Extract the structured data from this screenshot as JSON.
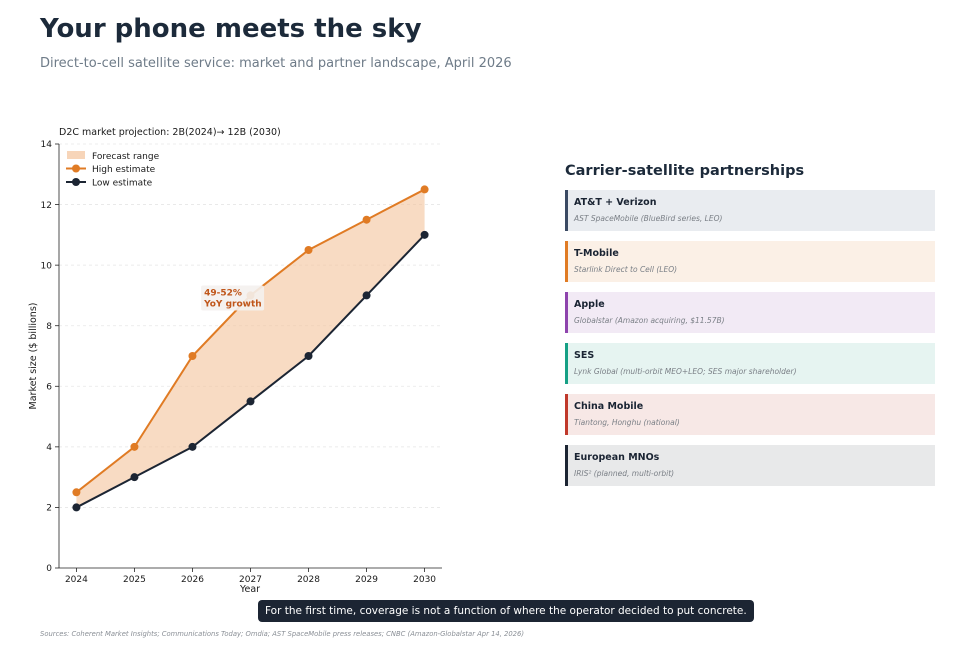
{
  "header": {
    "title": "Your phone meets the sky",
    "subtitle": "Direct-to-cell satellite service: market and partner landscape, April 2026"
  },
  "chart_data": {
    "type": "area",
    "title": "D2C market projection: 2B(2024)→ 12B (2030)",
    "xlabel": "Year",
    "ylabel": "Market size ($ billions)",
    "x": [
      2024,
      2025,
      2026,
      2027,
      2028,
      2029,
      2030
    ],
    "xlim": [
      2023.7,
      2030.3
    ],
    "ylim": [
      0,
      14
    ],
    "y_ticks": [
      0,
      2,
      4,
      6,
      8,
      10,
      12,
      14
    ],
    "grid": "horizontal, light",
    "legend_placement": "top-left",
    "legend": [
      "Forecast range",
      "High estimate",
      "Low estimate"
    ],
    "series": [
      {
        "name": "High estimate",
        "values": [
          2.5,
          4,
          7,
          9,
          10.5,
          11.5,
          12.5
        ],
        "color": "#e07b24"
      },
      {
        "name": "Low estimate",
        "values": [
          2,
          3,
          4,
          5.5,
          7,
          9,
          11
        ],
        "color": "#1c2533"
      }
    ],
    "band": {
      "name": "Forecast range",
      "color": "#f3c39b"
    },
    "annotation": {
      "line1": "49-52%",
      "line2": "YoY growth",
      "x": 2026.2,
      "y": 8.8,
      "color": "#c0561a"
    }
  },
  "partnerships": {
    "title": "Carrier-satellite partnerships",
    "items": [
      {
        "name": "AT&T + Verizon",
        "detail": "AST SpaceMobile (BlueBird series, LEO)",
        "accent": "#3b4a63",
        "bg": "#e9ecf0"
      },
      {
        "name": "T-Mobile",
        "detail": "Starlink Direct to Cell (LEO)",
        "accent": "#e07b24",
        "bg": "#fbf0e6"
      },
      {
        "name": "Apple",
        "detail": "Globalstar (Amazon acquiring, $11.57B)",
        "accent": "#8e44ad",
        "bg": "#f2eaf5"
      },
      {
        "name": "SES",
        "detail": "Lynk Global (multi-orbit MEO+LEO; SES major shareholder)",
        "accent": "#16a085",
        "bg": "#e6f4f1"
      },
      {
        "name": "China Mobile",
        "detail": "Tiantong, Honghu (national)",
        "accent": "#c0392b",
        "bg": "#f7e8e6"
      },
      {
        "name": "European MNOs",
        "detail": "IRIS² (planned, multi-orbit)",
        "accent": "#1c2533",
        "bg": "#e8e9ea"
      }
    ]
  },
  "callout": "For the first time, coverage is not a function of where the operator decided to put concrete.",
  "sources": "Sources: Coherent Market Insights; Communications Today; Omdia; AST SpaceMobile press releases; CNBC (Amazon-Globalstar Apr 14, 2026)"
}
